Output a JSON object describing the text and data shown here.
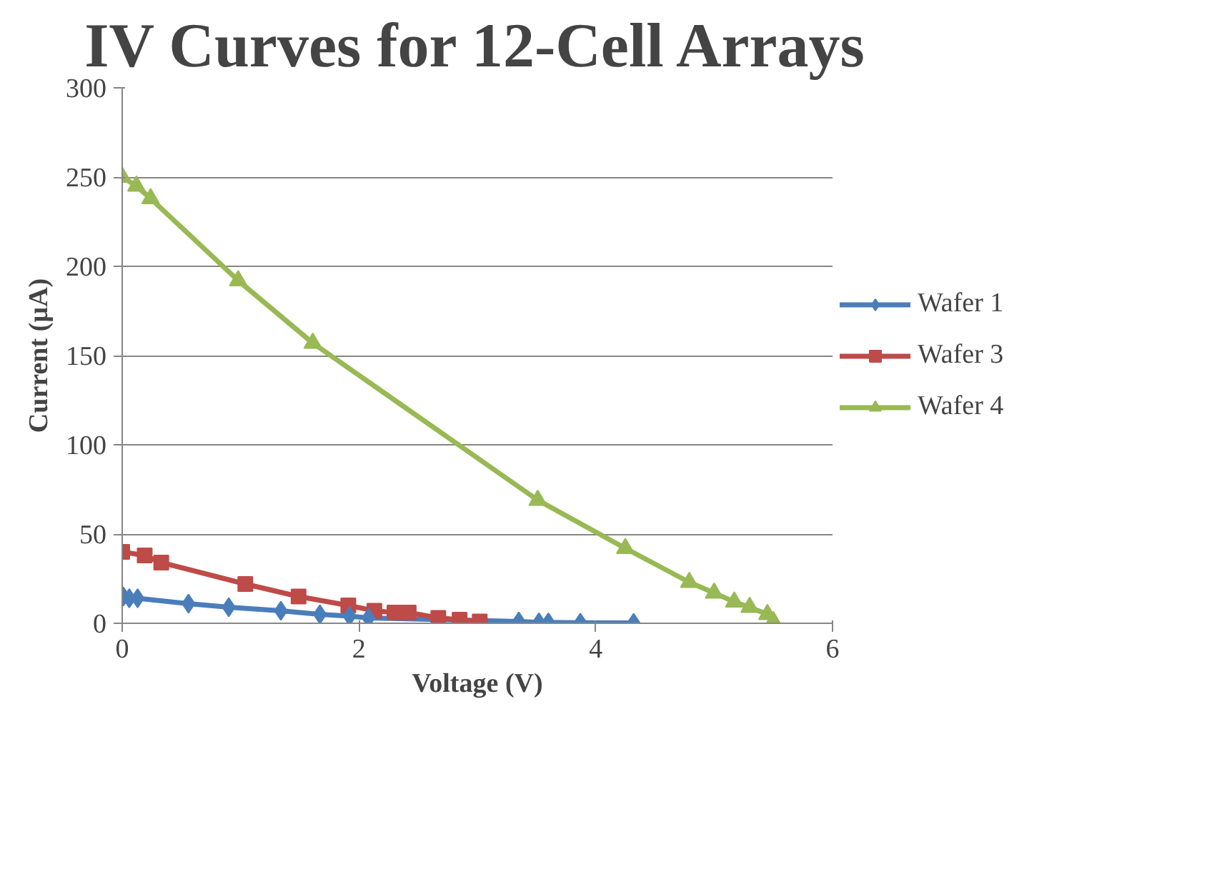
{
  "chart_data": {
    "type": "line",
    "title": "IV Curves for 12-Cell Arrays",
    "xlabel": "Voltage (V)",
    "ylabel": "Current (µA)",
    "xlim": [
      0,
      6
    ],
    "xticks": [
      0,
      2,
      4,
      6
    ],
    "ylim": [
      0,
      300
    ],
    "yticks": [
      0,
      50,
      100,
      150,
      200,
      250,
      300
    ],
    "grid": "y",
    "legend": "right",
    "line_style": "solid",
    "series": [
      {
        "name": "Wafer 1",
        "color": "#4a7ebb",
        "marker": "diamond",
        "x": [
          0.01,
          0.06,
          0.13,
          0.56,
          0.9,
          1.34,
          1.67,
          1.92,
          2.08,
          3.35,
          3.52,
          3.6,
          3.87,
          4.32
        ],
        "values": [
          15,
          14,
          14,
          11,
          9,
          7,
          5,
          4,
          3,
          1,
          0.5,
          0.5,
          0.3,
          0.2
        ]
      },
      {
        "name": "Wafer 3",
        "color": "#be4b48",
        "marker": "square",
        "x": [
          0,
          0.19,
          0.33,
          1.04,
          1.49,
          1.91,
          2.13,
          2.3,
          2.42,
          2.67,
          2.85,
          3.02
        ],
        "values": [
          40,
          38,
          34,
          22,
          15,
          10,
          7,
          6,
          6,
          3,
          2,
          1
        ]
      },
      {
        "name": "Wafer 4",
        "color": "#98b954",
        "marker": "triangle",
        "x": [
          0,
          0.12,
          0.24,
          0.98,
          1.61,
          3.51,
          4.25,
          4.79,
          5.0,
          5.17,
          5.3,
          5.45,
          5.5
        ],
        "values": [
          250,
          245,
          238,
          192,
          157,
          69,
          42,
          23,
          17,
          12,
          9,
          5,
          1
        ]
      }
    ]
  }
}
